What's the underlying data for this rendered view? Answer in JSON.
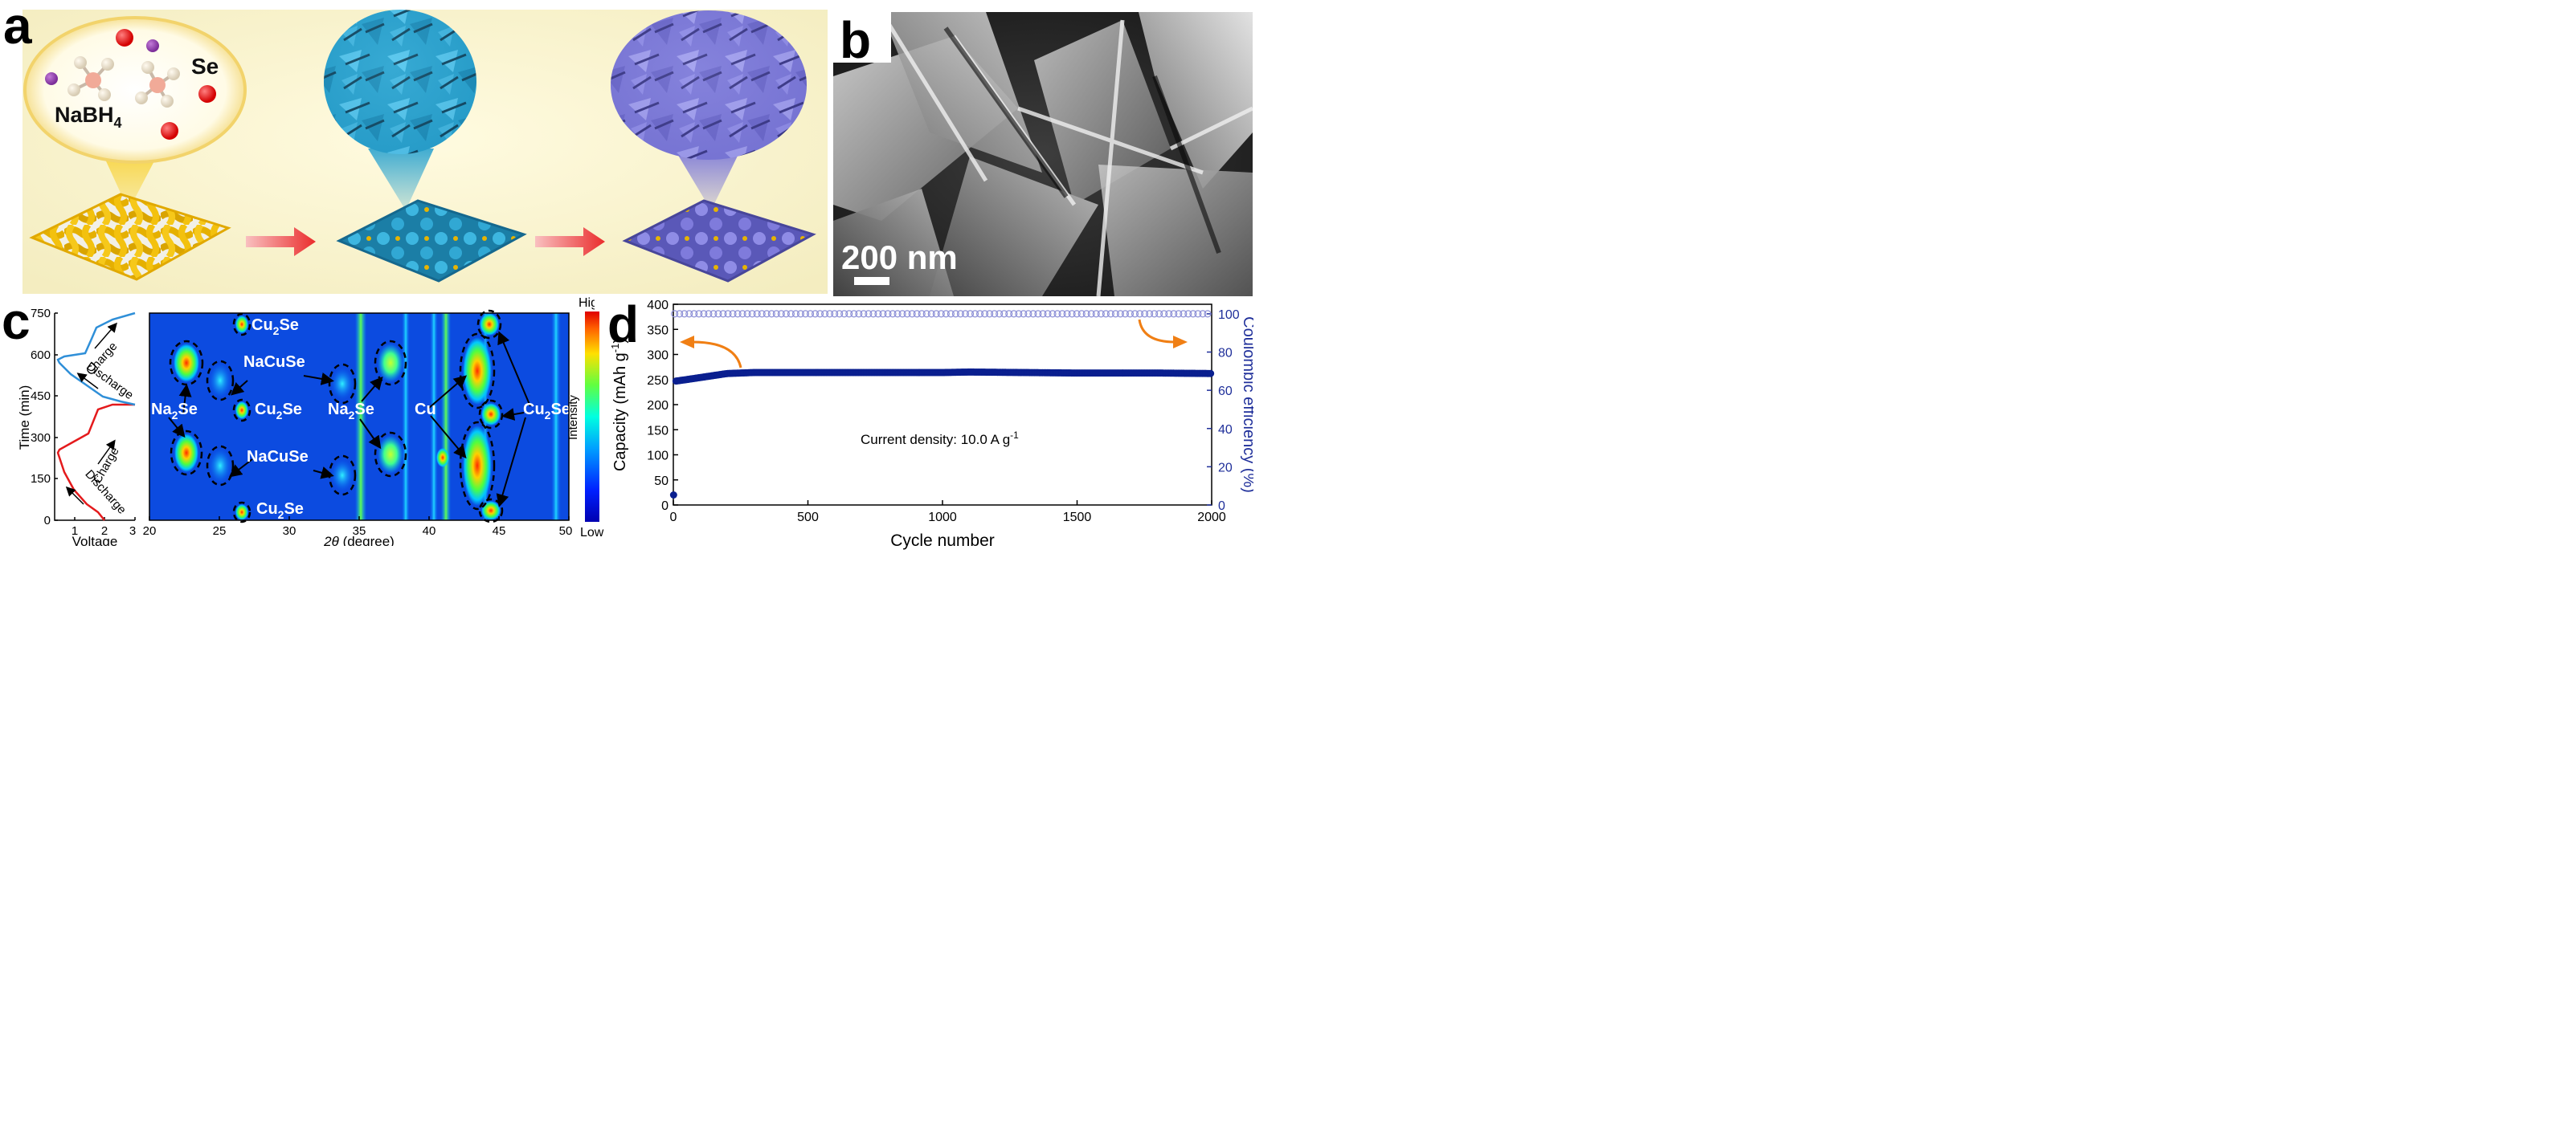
{
  "panel_a": {
    "label": "a",
    "bubble_formula": "NaBH",
    "bubble_formula_sub": "4",
    "bubble_element": "Se"
  },
  "panel_b": {
    "label": "b",
    "scale_bar_text": "200 nm"
  },
  "panel_c": {
    "label": "c",
    "voltage_profile": {
      "xlabel": "Voltage",
      "ylabel": "Time (min)",
      "xticks": [
        "1",
        "2",
        "3"
      ],
      "yticks": [
        "0",
        "150",
        "300",
        "450",
        "600",
        "750"
      ],
      "arrow_labels": [
        "Charge",
        "Discharge",
        "Charge",
        "Discharge"
      ],
      "colors": {
        "cycle1": "#e41a1c",
        "cycle2": "#2f8fd8"
      }
    },
    "contour": {
      "xlabel_italic": "2θ",
      "xlabel_rest": " (degree)",
      "xticks": [
        "20",
        "25",
        "30",
        "35",
        "40",
        "45",
        "50"
      ],
      "annotations": {
        "cu2se_top": "Cu",
        "cu2se_top_sub": "2",
        "cu2se_top_end": "Se",
        "nacuse_top": "NaCuSe",
        "cu2se_mid": "Cu",
        "cu2se_mid_sub": "2",
        "cu2se_mid_end": "Se",
        "na2se_left": "Na",
        "na2se_left_sub": "2",
        "na2se_left_end": "Se",
        "na2se_mid": "Na",
        "na2se_mid_sub": "2",
        "na2se_mid_end": "Se",
        "cu": "Cu",
        "cu2se_right": "Cu",
        "cu2se_right_sub": "2",
        "cu2se_right_end": "Se",
        "nacuse_bottom": "NaCuSe",
        "cu2se_bottom": "Cu",
        "cu2se_bottom_sub": "2",
        "cu2se_bottom_end": "Se"
      }
    },
    "colorbar": {
      "high": "High",
      "low": "Low",
      "title": "Intensity"
    }
  },
  "panel_d": {
    "label": "d",
    "annotation_text": "Current density: 10.0 A g",
    "annotation_sup": "-1"
  },
  "chart_data": {
    "type": "scatter",
    "xlabel": "Cycle number",
    "ylabel_left": "Capacity (mAh g",
    "ylabel_left_sup": "-1",
    "ylabel_left_end": ")",
    "ylabel_right": "Coulombic efficiency (%)",
    "xlim": [
      0,
      2000
    ],
    "ylim_left": [
      0,
      400
    ],
    "ylim_right": [
      0,
      105
    ],
    "xticks": [
      "0",
      "500",
      "1000",
      "1500",
      "2000"
    ],
    "yticks_left": [
      "0",
      "50",
      "100",
      "150",
      "200",
      "250",
      "300",
      "350",
      "400"
    ],
    "yticks_right": [
      "0",
      "20",
      "40",
      "60",
      "80",
      "100"
    ],
    "series": [
      {
        "axis": "left",
        "color": "#0a1f8f",
        "points": [
          [
            1,
            20
          ],
          [
            10,
            247
          ],
          [
            50,
            250
          ],
          [
            100,
            254
          ],
          [
            150,
            258
          ],
          [
            200,
            262
          ],
          [
            300,
            264
          ],
          [
            500,
            264
          ],
          [
            800,
            264
          ],
          [
            1000,
            264
          ],
          [
            1100,
            265
          ],
          [
            1300,
            264
          ],
          [
            1500,
            263
          ],
          [
            1800,
            263
          ],
          [
            2000,
            262
          ]
        ]
      },
      {
        "axis": "right",
        "color": "#8c8fd6",
        "points": [
          [
            1,
            100
          ],
          [
            500,
            100
          ],
          [
            1000,
            100
          ],
          [
            1500,
            100
          ],
          [
            2000,
            100
          ]
        ]
      }
    ],
    "colors": {
      "capacity": "#0a1f8f",
      "efficiency": "#8c8fd6",
      "arrow": "#f07f14",
      "right_axis": "#1f2f9a"
    }
  }
}
